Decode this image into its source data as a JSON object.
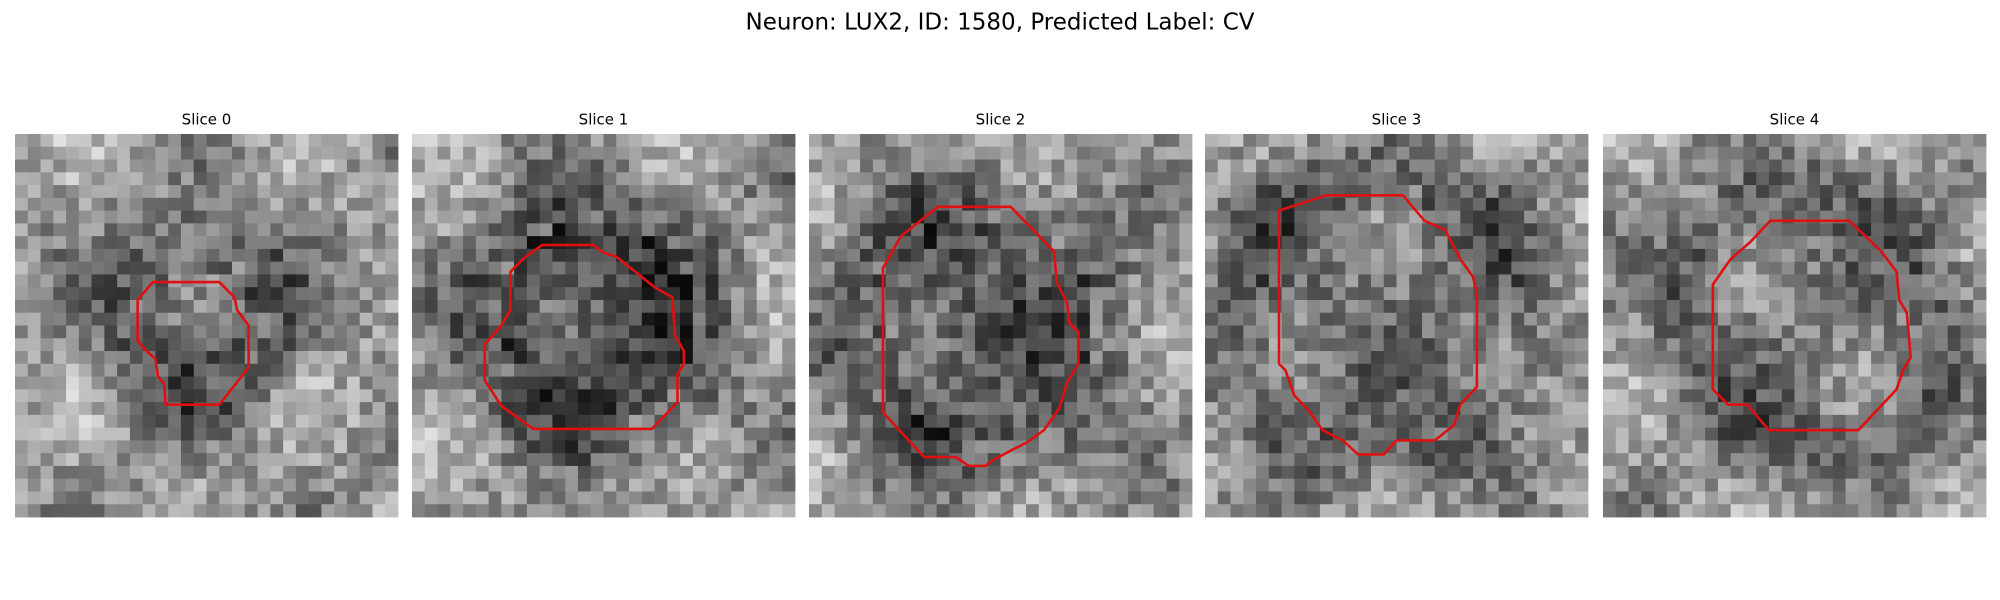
{
  "header": {
    "title": "Neuron: LUX2, ID: 1580, Predicted Label: CV"
  },
  "panels": [
    {
      "title": "Slice 0"
    },
    {
      "title": "Slice 1"
    },
    {
      "title": "Slice 2"
    },
    {
      "title": "Slice 3"
    },
    {
      "title": "Slice 4"
    }
  ]
}
